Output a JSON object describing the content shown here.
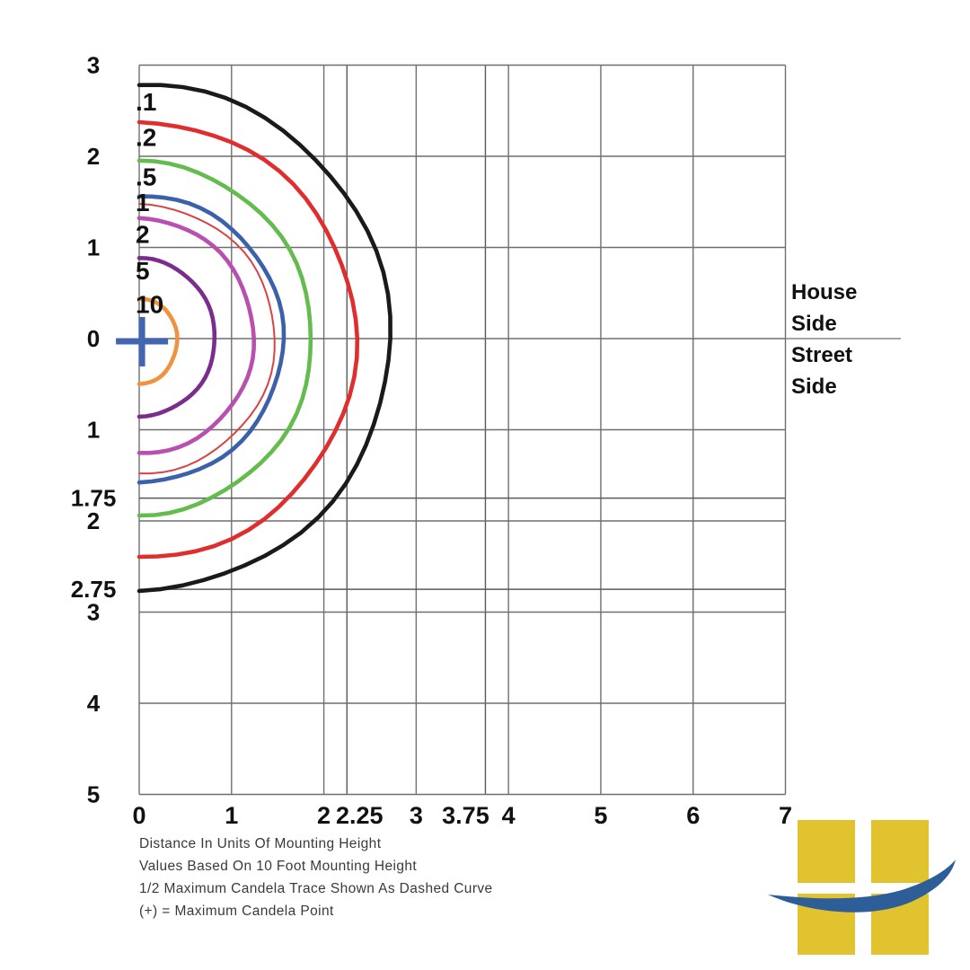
{
  "chart_data": {
    "type": "line",
    "subtype": "isofootcandle-contour-diagram",
    "grid": true,
    "x_axis": {
      "ticks": [
        0,
        1,
        2,
        2.25,
        3,
        3.75,
        4,
        5,
        6,
        7
      ],
      "labels": [
        "0",
        "1",
        "2",
        "2.25",
        "3",
        "3.75",
        "4",
        "5",
        "6",
        "7"
      ],
      "range": [
        0,
        7
      ]
    },
    "y_axis": {
      "ticks": [
        3,
        2,
        1,
        0,
        -1,
        -1.75,
        -2,
        -2.75,
        -3,
        -4,
        -5
      ],
      "labels": [
        "3",
        "2",
        "1",
        "0",
        "1",
        "1.75",
        "2",
        "2.75",
        "3",
        "4",
        "5"
      ],
      "range": [
        -5,
        3
      ]
    },
    "contours": [
      {
        "level": ".1",
        "footcandles": 0.1,
        "color": "#1a1a1a",
        "width": 4.6,
        "top": 2.79,
        "right": 2.72,
        "bottom": 2.76,
        "label_y": 2.6
      },
      {
        "level": ".2",
        "footcandles": 0.2,
        "color": "#e02e2e",
        "width": 4.6,
        "top": 2.38,
        "right": 2.35,
        "bottom": 2.41,
        "label_y": 2.21
      },
      {
        "level": ".5",
        "footcandles": 0.5,
        "color": "#64bb4e",
        "width": 4.6,
        "top": 1.94,
        "right": 1.87,
        "bottom": 1.93,
        "label_y": 1.78
      },
      {
        "level": "1",
        "footcandles": 1,
        "color": "#3c61ab",
        "width": 4.6,
        "top": 1.57,
        "right": 1.56,
        "bottom": 1.58,
        "label_y": 1.5
      },
      {
        "level": "2",
        "footcandles": 2,
        "color": "#b94fae",
        "width": 4.6,
        "top": 1.32,
        "right": 1.24,
        "bottom": 1.26,
        "label_y": 1.15
      },
      {
        "level": "5",
        "footcandles": 5,
        "color": "#7a2d8c",
        "width": 4.6,
        "top": 0.88,
        "right": 0.82,
        "bottom": 0.85,
        "label_y": 0.75
      },
      {
        "level": "10",
        "footcandles": 10,
        "color": "#ef9340",
        "width": 4.6,
        "top": 0.44,
        "right": 0.41,
        "bottom": 0.5,
        "label_y": 0.38
      }
    ],
    "half_max_trace": {
      "color": "#d94343",
      "width": 2,
      "top": 1.47,
      "right": 1.47,
      "bottom": 1.48
    },
    "max_candela_point": {
      "x": 0.03,
      "y": -0.03,
      "color": "#4466b2"
    },
    "side_labels": {
      "house_line1": "House",
      "house_line2": "Side",
      "street_line1": "Street",
      "street_line2": "Side"
    },
    "annotations": [
      "Distance In Units Of Mounting Height",
      "Values Based On 10 Foot Mounting Height",
      "1/2 Maximum Candela Trace Shown As Dashed Curve",
      "(+) = Maximum Candela Point"
    ],
    "style": {
      "grid": "#6f6f6f",
      "grid_special": "#5a5a5a",
      "text": "#111111",
      "footer_text": "#3a3a3a"
    }
  },
  "logo": {
    "yellow": "#e0c32e",
    "blue": "#2d5e97"
  }
}
